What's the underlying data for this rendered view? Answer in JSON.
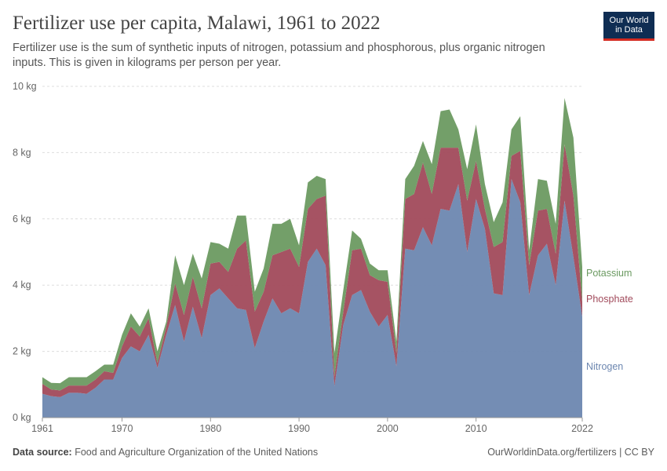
{
  "header": {
    "title": "Fertilizer use per capita, Malawi, 1961 to 2022",
    "subtitle": "Fertilizer use is the sum of synthetic inputs of nitrogen, potassium and phosphorous, plus organic nitrogen inputs. This is given in kilograms per person per year.",
    "logo_line1": "Our World",
    "logo_line2": "in Data"
  },
  "footer": {
    "source_label": "Data source:",
    "source_text": "Food and Agriculture Organization of the United Nations",
    "link_text": "OurWorldinData.org/fertilizers | CC BY"
  },
  "colors": {
    "nitrogen": "#6d87b0",
    "phosphate": "#a14a5b",
    "potassium": "#6b9a61"
  },
  "chart_data": {
    "type": "area",
    "stacked": true,
    "title": "Fertilizer use per capita, Malawi, 1961 to 2022",
    "xlabel": "",
    "ylabel": "",
    "xlim": [
      1961,
      2022
    ],
    "ylim": [
      0,
      10
    ],
    "y_ticks": [
      0,
      2,
      4,
      6,
      8,
      10
    ],
    "y_tick_labels": [
      "0 kg",
      "2 kg",
      "4 kg",
      "6 kg",
      "8 kg",
      "10 kg"
    ],
    "x_ticks": [
      1961,
      1970,
      1980,
      1990,
      2000,
      2010,
      2022
    ],
    "x_tick_labels": [
      "1961",
      "1970",
      "1980",
      "1990",
      "2000",
      "2010",
      "2022"
    ],
    "x": [
      1961,
      1962,
      1963,
      1964,
      1965,
      1966,
      1967,
      1968,
      1969,
      1970,
      1971,
      1972,
      1973,
      1974,
      1975,
      1976,
      1977,
      1978,
      1979,
      1980,
      1981,
      1982,
      1983,
      1984,
      1985,
      1986,
      1987,
      1988,
      1989,
      1990,
      1991,
      1992,
      1993,
      1994,
      1995,
      1996,
      1997,
      1998,
      1999,
      2000,
      2001,
      2002,
      2003,
      2004,
      2005,
      2006,
      2007,
      2008,
      2009,
      2010,
      2011,
      2012,
      2013,
      2014,
      2015,
      2016,
      2017,
      2018,
      2019,
      2020,
      2021,
      2022
    ],
    "series": [
      {
        "name": "Nitrogen",
        "values": [
          0.72,
          0.65,
          0.62,
          0.75,
          0.75,
          0.72,
          0.9,
          1.15,
          1.15,
          1.8,
          2.15,
          2.0,
          2.5,
          1.5,
          2.5,
          3.4,
          2.3,
          3.35,
          2.4,
          3.7,
          3.9,
          3.6,
          3.3,
          3.25,
          2.1,
          2.9,
          3.6,
          3.15,
          3.3,
          3.15,
          4.7,
          5.1,
          4.6,
          0.95,
          2.8,
          3.7,
          3.85,
          3.2,
          2.75,
          3.1,
          1.55,
          5.1,
          5.05,
          5.75,
          5.2,
          6.3,
          6.25,
          7.05,
          5.0,
          6.6,
          5.7,
          3.75,
          3.7,
          7.2,
          6.5,
          3.7,
          4.9,
          5.25,
          4.0,
          6.55,
          4.85,
          3.05
        ]
      },
      {
        "name": "Phosphate",
        "values": [
          0.3,
          0.2,
          0.2,
          0.22,
          0.22,
          0.25,
          0.25,
          0.25,
          0.2,
          0.35,
          0.6,
          0.45,
          0.5,
          0.15,
          0.25,
          0.65,
          0.8,
          0.9,
          0.9,
          0.95,
          0.8,
          0.8,
          1.8,
          2.1,
          1.1,
          0.9,
          1.3,
          1.85,
          1.8,
          1.4,
          1.6,
          1.5,
          2.1,
          0.3,
          0.4,
          1.35,
          1.25,
          1.1,
          1.4,
          1.0,
          0.4,
          1.5,
          1.7,
          1.95,
          1.55,
          1.85,
          1.9,
          1.1,
          1.55,
          1.15,
          0.6,
          1.4,
          1.6,
          0.7,
          1.55,
          0.9,
          1.35,
          1.05,
          0.95,
          1.7,
          1.85,
          0.45
        ]
      },
      {
        "name": "Potassium",
        "values": [
          0.2,
          0.2,
          0.22,
          0.25,
          0.25,
          0.25,
          0.25,
          0.2,
          0.25,
          0.35,
          0.4,
          0.3,
          0.3,
          0.35,
          0.15,
          0.85,
          0.9,
          0.7,
          0.9,
          0.65,
          0.55,
          0.7,
          1.0,
          0.75,
          0.6,
          0.7,
          0.95,
          0.85,
          0.9,
          0.65,
          0.8,
          0.7,
          0.5,
          0.7,
          0.65,
          0.6,
          0.3,
          0.35,
          0.3,
          0.35,
          0.35,
          0.6,
          0.85,
          0.65,
          0.9,
          1.1,
          1.15,
          0.55,
          0.95,
          1.1,
          0.75,
          0.75,
          1.2,
          0.8,
          1.05,
          0.45,
          0.95,
          0.85,
          0.9,
          1.4,
          1.75,
          1.05
        ]
      }
    ],
    "legend": [
      "Potassium",
      "Phosphate",
      "Nitrogen"
    ],
    "legend_position": "right, at end of series",
    "grid": true
  }
}
